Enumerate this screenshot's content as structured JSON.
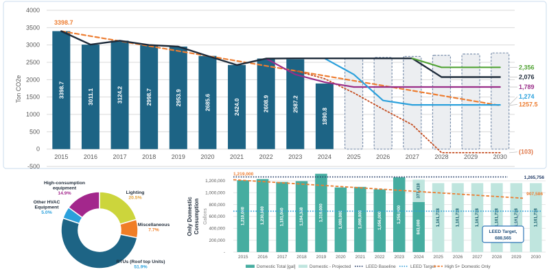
{
  "colors": {
    "emissions_bar": "#1d6485",
    "emissions_projected_fill": "#eceef1",
    "emissions_projected_stroke": "#7b90ad",
    "domestic_bar": "#46ada0",
    "domestic_projected": "#bfe5de",
    "axis_text": "#595959",
    "grid": "#d9d9d9",
    "dark_text": "#1e2a38",
    "orange": "#ed7d31",
    "navy": "#1f3864",
    "blue": "#2aa0dc",
    "green": "#52a335",
    "purple": "#992d88",
    "red_dotted": "#c44b1e"
  },
  "chart_data": [
    {
      "name": "emissions-forecast",
      "type": "bar",
      "ylabel": "Ton CO2e",
      "ylim": [
        -500,
        4000
      ],
      "yticks": [
        4000,
        3500,
        3000,
        2500,
        2000,
        1500,
        1000,
        500,
        0,
        -500
      ],
      "categories": [
        "2015",
        "2016",
        "2017",
        "2018",
        "2019",
        "2020",
        "2021",
        "2022",
        "2023",
        "2024",
        "2025",
        "2026",
        "2027",
        "2028",
        "2029",
        "2030"
      ],
      "bars_actual": {
        "years": [
          2015,
          2016,
          2017,
          2018,
          2019,
          2020,
          2021,
          2022,
          2023,
          2024
        ],
        "values": [
          3398.7,
          3011.1,
          3124.2,
          2998.7,
          2953.9,
          2685.6,
          2424.0,
          2608.9,
          2587.2,
          1890.8
        ],
        "labels": [
          "3398.7",
          "3011.1",
          "3124.2",
          "2998.7",
          "2953.9",
          "2685.6",
          "2424.0",
          "2608.9",
          "2587.2",
          "1890.8"
        ]
      },
      "bars_projected": {
        "years": [
          2025,
          2026,
          2027,
          2028,
          2029,
          2030
        ],
        "values": [
          2620,
          2640,
          2670,
          2705,
          2740,
          2770
        ]
      },
      "start_annotation": "3398.7",
      "lines": [
        {
          "name": "trend-orange-dashed",
          "color": "#ed7d31",
          "dash": "6,4",
          "width": 2.2,
          "points": [
            [
              2015,
              3398.7
            ],
            [
              2030,
              1257.5
            ]
          ],
          "end_label": "1257.5",
          "label_v": 1290
        },
        {
          "name": "scenario-red-dotted",
          "color": "#c44b1e",
          "dash": "1.8,3",
          "width": 1.8,
          "points": [
            [
              2023,
              2257
            ],
            [
              2024,
              2030
            ],
            [
              2025,
              1620
            ],
            [
              2026,
              1150
            ],
            [
              2027,
              700
            ],
            [
              2028,
              -103
            ],
            [
              2030,
              -103
            ]
          ],
          "end_label": "(103)",
          "label_v": -80,
          "label_color": "#e0784a"
        },
        {
          "name": "scenario-purple",
          "color": "#992d88",
          "dash": "",
          "width": 2.2,
          "points": [
            [
              2022,
              2608.9
            ],
            [
              2023,
              2150
            ],
            [
              2024,
              1930
            ],
            [
              2025,
              1789
            ],
            [
              2030,
              1789
            ]
          ],
          "end_label": "1,789"
        },
        {
          "name": "scenario-blue",
          "color": "#2aa0dc",
          "dash": "",
          "width": 2.2,
          "points": [
            [
              2024,
              2615
            ],
            [
              2025,
              2150
            ],
            [
              2026,
              1400
            ],
            [
              2027,
              1274
            ],
            [
              2030,
              1274
            ]
          ],
          "end_label": "1,274",
          "label_v": 1510
        },
        {
          "name": "actual-and-projection",
          "color": "#1e2b3a",
          "dash": "",
          "width": 2.4,
          "points": [
            [
              2015,
              3398.7
            ],
            [
              2016,
              3011.1
            ],
            [
              2017,
              3124.2
            ],
            [
              2018,
              2998.7
            ],
            [
              2019,
              2953.9
            ],
            [
              2020,
              2685.6
            ],
            [
              2021,
              2424.0
            ],
            [
              2022,
              2608.9
            ],
            [
              2023,
              2615
            ],
            [
              2027,
              2615
            ],
            [
              2028,
              2076
            ],
            [
              2030,
              2076
            ]
          ],
          "end_label": "2,076"
        },
        {
          "name": "scenario-green",
          "color": "#52a335",
          "dash": "",
          "width": 2.2,
          "points": [
            [
              2027,
              2615
            ],
            [
              2028,
              2356
            ],
            [
              2030,
              2356
            ]
          ],
          "end_label": "2,356"
        }
      ]
    },
    {
      "name": "consumption-breakdown",
      "type": "pie",
      "segments": [
        {
          "label": "Lighting",
          "label_lines": [
            "Lighting"
          ],
          "pct": 20.5,
          "pct_label": "20.5%",
          "color": "#ccd53c",
          "value_color": "#e3a23a"
        },
        {
          "label": "Miscellaneous",
          "label_lines": [
            "Miscellaneous"
          ],
          "pct": 7.7,
          "pct_label": "7.7%",
          "color": "#f07e26",
          "value_color": "#f07e26"
        },
        {
          "label": "RTUs (Roof top Units)",
          "label_lines": [
            "RTUs (Roof top Units)"
          ],
          "pct": 51.9,
          "pct_label": "51.9%",
          "color": "#1d6485",
          "value_color": "#2aa0dc"
        },
        {
          "label": "Other HVAC Equipment",
          "label_lines": [
            "Other HVAC",
            "Equipment"
          ],
          "pct": 5.0,
          "pct_label": "5.0%",
          "color": "#2aa0dc",
          "value_color": "#2aa0dc"
        },
        {
          "label": "High-consumption equipment",
          "label_lines": [
            "High-consumption",
            "equipment"
          ],
          "pct": 14.9,
          "pct_label": "14.9%",
          "color": "#a3278c",
          "value_color": "#a3278c"
        }
      ]
    },
    {
      "name": "domestic-consumption",
      "type": "bar",
      "title": "Only Domestic Consumption",
      "title_lines": [
        "Only Domestic",
        "Consumption"
      ],
      "ylabel": "Gallons",
      "yticks": [
        {
          "v": 1200000,
          "label": "1,200,000"
        },
        {
          "v": 1000000,
          "label": "1,000,000"
        },
        {
          "v": 800000,
          "label": "800,000"
        },
        {
          "v": 600000,
          "label": "600,000"
        },
        {
          "v": 400000,
          "label": "400,000"
        },
        {
          "v": 200000,
          "label": "200,000"
        },
        {
          "v": 0,
          "label": "-"
        }
      ],
      "bars": [
        {
          "year": "2015",
          "actual": 1210000,
          "label": "1,210,000"
        },
        {
          "year": "2016",
          "actual": 1230000,
          "label": "1,230,000"
        },
        {
          "year": "2017",
          "actual": 1181000,
          "label": "1,181,000"
        },
        {
          "year": "2018",
          "actual": 1194368,
          "label": "1,194,368"
        },
        {
          "year": "2019",
          "actual": 1319000,
          "label": "1,319,000"
        },
        {
          "year": "2020",
          "actual": 1089000,
          "label": "1,089,000"
        },
        {
          "year": "2021",
          "actual": 1098000,
          "label": "1,098,000"
        },
        {
          "year": "2022",
          "actual": 1056000,
          "label": "1,056,000"
        },
        {
          "year": "2023",
          "actual": 1259000,
          "label": "1,259,000"
        },
        {
          "year": "2024",
          "actual": 843000,
          "label": "843,000",
          "projected": 377418,
          "projected_label": "377,418"
        },
        {
          "year": "2025",
          "projected": 1161718,
          "projected_label": "1,161,718"
        },
        {
          "year": "2026",
          "projected": 1161718,
          "projected_label": "1,161,718"
        },
        {
          "year": "2027",
          "projected": 1161718,
          "projected_label": "1,161,718"
        },
        {
          "year": "2028",
          "projected": 1161718,
          "projected_label": "1,161,718"
        },
        {
          "year": "2029",
          "projected": 1161718,
          "projected_label": "1,161,718"
        },
        {
          "year": "2030",
          "projected": 1161718,
          "projected_label": "1,161,718"
        }
      ],
      "leed_baseline": {
        "value": 1265756,
        "label": "1,265,756"
      },
      "leed_target": {
        "value": 688565,
        "callout_line1": "LEED Target,",
        "callout_line2": "688,565"
      },
      "high5": {
        "start": 1219000,
        "start_label": "1,219,000",
        "end": 907586,
        "end_label": "907,586"
      },
      "legend": [
        {
          "label": "Domestic Total [gal]",
          "swatch": "solid",
          "color": "#46ada0"
        },
        {
          "label": "Domestic - Projected",
          "swatch": "solid",
          "color": "#bfe5de"
        },
        {
          "label": "LEED Baseline",
          "swatch": "dotted",
          "color": "#1f3864"
        },
        {
          "label": "LEED Target",
          "swatch": "dotted",
          "color": "#2e9bd6"
        },
        {
          "label": "High 5+ Domestic Only",
          "swatch": "dashed",
          "color": "#ed7d31"
        }
      ]
    }
  ]
}
